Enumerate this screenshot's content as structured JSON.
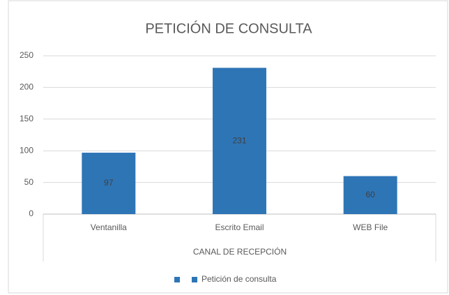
{
  "chart_data": {
    "type": "bar",
    "title": "PETICIÓN DE CONSULTA",
    "x_label": "CANAL DE RECEPCIÓN",
    "categories": [
      "Ventanilla",
      "Escrito Email",
      "WEB File"
    ],
    "series": [
      {
        "name": "Petición de consulta",
        "color": "#2e75b6",
        "values": [
          97,
          231,
          60
        ]
      }
    ],
    "ylim": [
      0,
      250
    ],
    "yticks": [
      0,
      50,
      100,
      150,
      200,
      250
    ],
    "grid": true,
    "legend": "bottom"
  }
}
